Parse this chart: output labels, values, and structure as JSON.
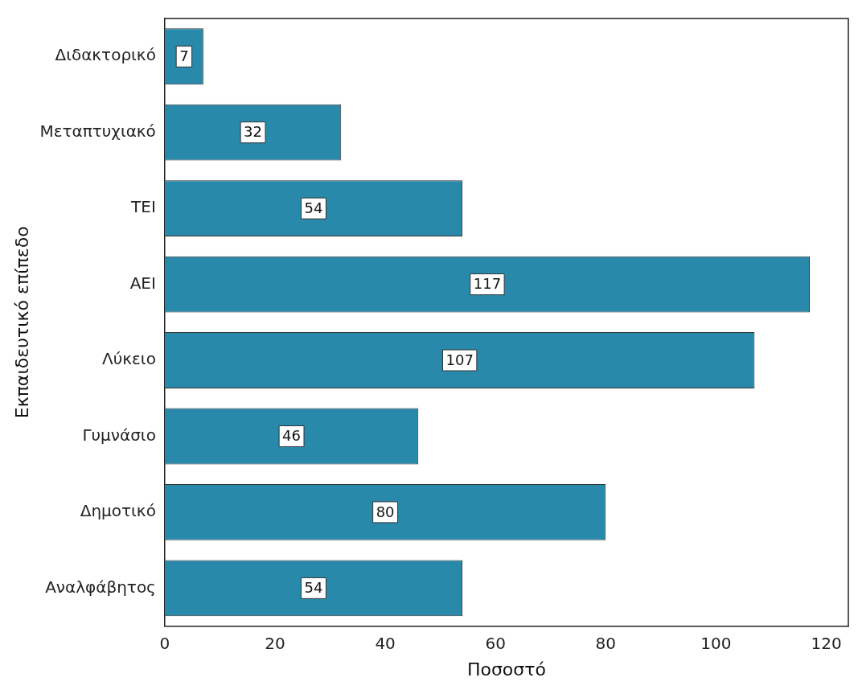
{
  "chart_data": {
    "type": "bar",
    "orientation": "horizontal",
    "xlabel": "Ποσοστό",
    "ylabel": "Εκπαιδευτικό επίπεδο",
    "categories": [
      "Διδακτορικό",
      "Μεταπτυχιακό",
      "ΤΕΙ",
      "ΑΕΙ",
      "Λύκειο",
      "Γυμνάσιο",
      "Δημοτικό",
      "Αναλφάβητος"
    ],
    "values": [
      7,
      32,
      54,
      117,
      107,
      46,
      80,
      54
    ],
    "color": "#2889ab",
    "xlim": [
      0,
      124
    ],
    "xticks": [
      0,
      20,
      40,
      60,
      80,
      100,
      120
    ],
    "grid": false,
    "legend": false,
    "data_labels": true
  }
}
